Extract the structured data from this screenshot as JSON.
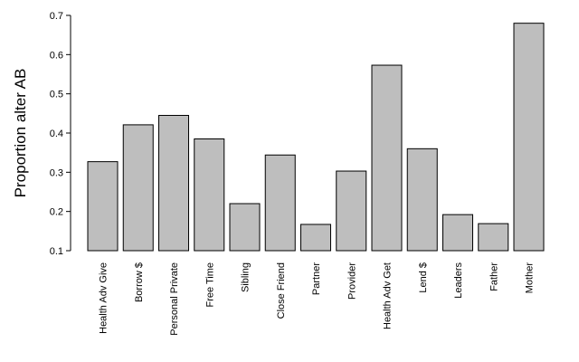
{
  "chart_data": {
    "type": "bar",
    "title": "",
    "xlabel": "",
    "ylabel": "Proportion alter AB",
    "ylim": [
      0.1,
      0.7
    ],
    "yticks": [
      "0.1",
      "0.2",
      "0.3",
      "0.4",
      "0.5",
      "0.6",
      "0.7"
    ],
    "grid": false,
    "legend": "none",
    "categories": [
      "Health Adv Give",
      "Borrow $",
      "Personal Private",
      "Free Time",
      "Sibling",
      "Close Friend",
      "Partner",
      "Provider",
      "Health Adv Get",
      "Lend $",
      "Leaders",
      "Father",
      "Mother"
    ],
    "values": [
      0.327,
      0.421,
      0.445,
      0.385,
      0.22,
      0.344,
      0.167,
      0.303,
      0.573,
      0.36,
      0.192,
      0.169,
      0.68
    ],
    "colors": {
      "bar_fill": "#bebebe",
      "bar_stroke": "#000000",
      "axis": "#000000"
    }
  }
}
